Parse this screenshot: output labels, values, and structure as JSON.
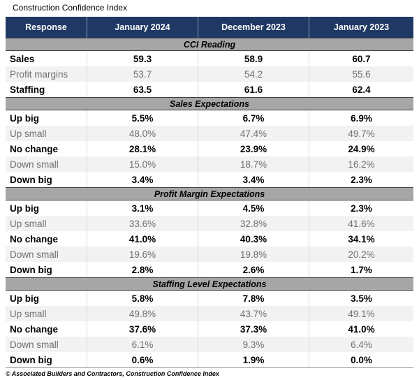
{
  "chart_data": {
    "type": "table",
    "title": "Construction Confidence Index",
    "columns": [
      "Response",
      "January 2024",
      "December 2023",
      "January 2023"
    ],
    "sections": [
      {
        "header": "CCI Reading",
        "rows": [
          {
            "label": "Sales",
            "values": [
              "59.3",
              "58.9",
              "60.7"
            ]
          },
          {
            "label": "Profit margins",
            "values": [
              "53.7",
              "54.2",
              "55.6"
            ]
          },
          {
            "label": "Staffing",
            "values": [
              "63.5",
              "61.6",
              "62.4"
            ]
          }
        ]
      },
      {
        "header": "Sales Expectations",
        "rows": [
          {
            "label": "Up big",
            "values": [
              "5.5%",
              "6.7%",
              "6.9%"
            ]
          },
          {
            "label": "Up small",
            "values": [
              "48.0%",
              "47.4%",
              "49.7%"
            ]
          },
          {
            "label": "No change",
            "values": [
              "28.1%",
              "23.9%",
              "24.9%"
            ]
          },
          {
            "label": "Down small",
            "values": [
              "15.0%",
              "18.7%",
              "16.2%"
            ]
          },
          {
            "label": "Down big",
            "values": [
              "3.4%",
              "3.4%",
              "2.3%"
            ]
          }
        ]
      },
      {
        "header": "Profit Margin Expectations",
        "rows": [
          {
            "label": "Up big",
            "values": [
              "3.1%",
              "4.5%",
              "2.3%"
            ]
          },
          {
            "label": "Up small",
            "values": [
              "33.6%",
              "32.8%",
              "41.6%"
            ]
          },
          {
            "label": "No change",
            "values": [
              "41.0%",
              "40.3%",
              "34.1%"
            ]
          },
          {
            "label": "Down small",
            "values": [
              "19.6%",
              "19.8%",
              "20.2%"
            ]
          },
          {
            "label": "Down big",
            "values": [
              "2.8%",
              "2.6%",
              "1.7%"
            ]
          }
        ]
      },
      {
        "header": "Staffing Level Expectations",
        "rows": [
          {
            "label": "Up big",
            "values": [
              "5.8%",
              "7.8%",
              "3.5%"
            ]
          },
          {
            "label": "Up small",
            "values": [
              "49.8%",
              "43.7%",
              "49.1%"
            ]
          },
          {
            "label": "No change",
            "values": [
              "37.6%",
              "37.3%",
              "41.0%"
            ]
          },
          {
            "label": "Down small",
            "values": [
              "6.1%",
              "9.3%",
              "6.4%"
            ]
          },
          {
            "label": "Down big",
            "values": [
              "0.6%",
              "1.9%",
              "0.0%"
            ]
          }
        ]
      }
    ],
    "source_note": "© Associated Builders and Contractors, Construction Confidence Index",
    "layout": {
      "row_shading": "alternating",
      "bold_rows": "odd",
      "value_alignment": "center"
    }
  },
  "colors": {
    "header_bg": "#1f3864",
    "header_text": "#ffffff",
    "section_band_bg": "#a6a6a6",
    "shaded_row_bg": "#f2f2f2",
    "shaded_row_text": "#6f6f6f",
    "bold_row_text": "#000000",
    "column_divider": "#d9d9d9"
  }
}
